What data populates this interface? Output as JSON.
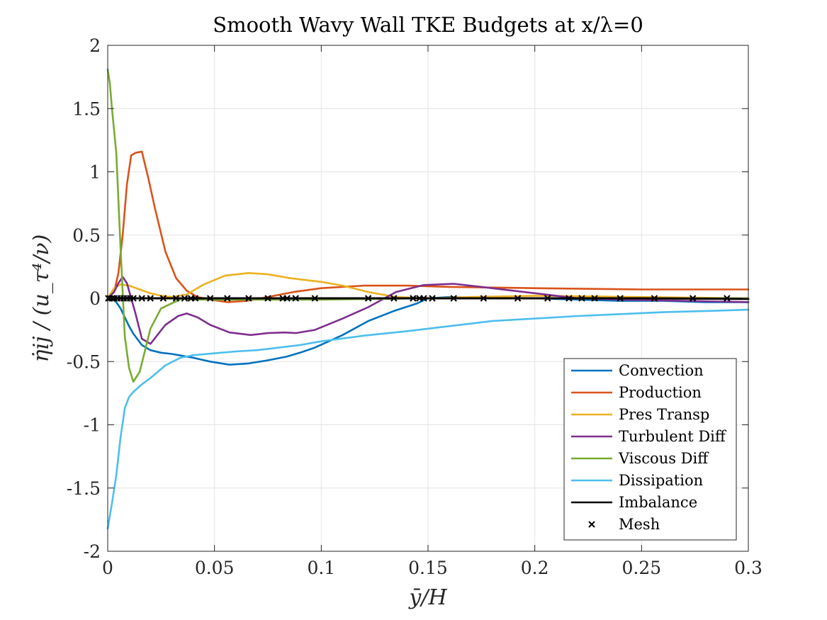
{
  "chart_data": {
    "type": "line",
    "title": "Smooth Wavy Wall TKE Budgets at x/λ=0",
    "xlabel": "ȳ/H",
    "ylabel": "η̇ij / (u_τ⁴/ν)",
    "xlim": [
      0,
      0.3
    ],
    "ylim": [
      -2,
      2
    ],
    "xticks": [
      0,
      0.05,
      0.1,
      0.15,
      0.2,
      0.25,
      0.3
    ],
    "xtick_labels": [
      "0",
      "0.05",
      "0.1",
      "0.15",
      "0.2",
      "0.25",
      "0.3"
    ],
    "yticks": [
      -2,
      -1.5,
      -1,
      -0.5,
      0,
      0.5,
      1,
      1.5,
      2
    ],
    "ytick_labels": [
      "-2",
      "-1.5",
      "-1",
      "-0.5",
      "0",
      "0.5",
      "1",
      "1.5",
      "2"
    ],
    "grid": true,
    "legend_position": "bottom-right",
    "series": [
      {
        "name": "Convection",
        "color": "#0072BD",
        "x": [
          0,
          0.002,
          0.004,
          0.006,
          0.008,
          0.01,
          0.012,
          0.016,
          0.02,
          0.025,
          0.03,
          0.035,
          0.04,
          0.048,
          0.057,
          0.066,
          0.075,
          0.084,
          0.09,
          0.097,
          0.11,
          0.122,
          0.134,
          0.145,
          0.15,
          0.16,
          0.18,
          0.2,
          0.22,
          0.24,
          0.26,
          0.28,
          0.3
        ],
        "y": [
          0,
          0,
          -0.03,
          -0.08,
          -0.15,
          -0.22,
          -0.28,
          -0.37,
          -0.41,
          -0.43,
          -0.44,
          -0.455,
          -0.47,
          -0.5,
          -0.525,
          -0.515,
          -0.49,
          -0.46,
          -0.43,
          -0.39,
          -0.29,
          -0.18,
          -0.1,
          -0.04,
          0,
          0.01,
          0,
          0,
          -0.01,
          -0.02,
          -0.02,
          -0.03,
          -0.03
        ]
      },
      {
        "name": "Production",
        "color": "#D95319",
        "x": [
          0,
          0.003,
          0.005,
          0.007,
          0.009,
          0.011,
          0.013,
          0.016,
          0.019,
          0.022,
          0.027,
          0.032,
          0.037,
          0.042,
          0.048,
          0.056,
          0.065,
          0.075,
          0.087,
          0.1,
          0.12,
          0.14,
          0.16,
          0.2,
          0.25,
          0.3
        ],
        "y": [
          0,
          0.05,
          0.2,
          0.5,
          0.9,
          1.13,
          1.15,
          1.16,
          0.95,
          0.72,
          0.37,
          0.16,
          0.06,
          0.01,
          -0.01,
          -0.03,
          -0.02,
          0.01,
          0.05,
          0.08,
          0.1,
          0.1,
          0.09,
          0.08,
          0.07,
          0.07
        ]
      },
      {
        "name": "Pres Transp",
        "color": "#EDB120",
        "x": [
          0,
          0.003,
          0.006,
          0.01,
          0.015,
          0.02,
          0.025,
          0.03,
          0.037,
          0.045,
          0.055,
          0.066,
          0.075,
          0.085,
          0.1,
          0.11,
          0.122,
          0.135,
          0.15,
          0.17,
          0.2,
          0.25,
          0.3
        ],
        "y": [
          0,
          0.08,
          0.11,
          0.1,
          0.07,
          0.04,
          0.02,
          0.01,
          0.03,
          0.11,
          0.18,
          0.2,
          0.19,
          0.16,
          0.13,
          0.1,
          0.05,
          0.01,
          0,
          0.01,
          0.02,
          0.01,
          0
        ]
      },
      {
        "name": "Turbulent Diff",
        "color": "#7E2F8E",
        "x": [
          0,
          0.003,
          0.005,
          0.007,
          0.009,
          0.011,
          0.013,
          0.016,
          0.02,
          0.027,
          0.033,
          0.037,
          0.042,
          0.048,
          0.057,
          0.067,
          0.075,
          0.083,
          0.088,
          0.097,
          0.11,
          0.122,
          0.135,
          0.148,
          0.162,
          0.175,
          0.19,
          0.21,
          0.22,
          0.24,
          0.27,
          0.3
        ],
        "y": [
          0,
          0.05,
          0.12,
          0.17,
          0.12,
          0,
          -0.12,
          -0.32,
          -0.36,
          -0.21,
          -0.14,
          -0.12,
          -0.15,
          -0.21,
          -0.27,
          -0.29,
          -0.275,
          -0.27,
          -0.275,
          -0.25,
          -0.16,
          -0.07,
          0.05,
          0.105,
          0.115,
          0.09,
          0.06,
          0.02,
          0,
          -0.01,
          -0.02,
          -0.03
        ]
      },
      {
        "name": "Viscous Diff",
        "color": "#77AC30",
        "x": [
          0,
          0.001,
          0.002,
          0.004,
          0.006,
          0.008,
          0.01,
          0.012,
          0.015,
          0.02,
          0.025,
          0.03,
          0.035,
          0.04,
          0.05,
          0.06,
          0.08,
          0.1,
          0.15,
          0.2,
          0.25,
          0.3
        ],
        "y": [
          1.81,
          1.7,
          1.5,
          1.15,
          0.4,
          -0.3,
          -0.55,
          -0.66,
          -0.58,
          -0.24,
          -0.08,
          -0.04,
          0,
          -0.01,
          -0.01,
          -0.01,
          -0.01,
          -0.01,
          0,
          0,
          0,
          0
        ]
      },
      {
        "name": "Dissipation",
        "color": "#4DBEEE",
        "x": [
          0,
          0.002,
          0.004,
          0.006,
          0.008,
          0.01,
          0.012,
          0.016,
          0.02,
          0.027,
          0.034,
          0.04,
          0.05,
          0.06,
          0.07,
          0.08,
          0.09,
          0.1,
          0.12,
          0.14,
          0.16,
          0.18,
          0.2,
          0.22,
          0.24,
          0.26,
          0.28,
          0.3
        ],
        "y": [
          -1.82,
          -1.62,
          -1.4,
          -1.1,
          -0.87,
          -0.78,
          -0.74,
          -0.68,
          -0.63,
          -0.53,
          -0.47,
          -0.45,
          -0.435,
          -0.42,
          -0.41,
          -0.39,
          -0.37,
          -0.34,
          -0.295,
          -0.26,
          -0.22,
          -0.18,
          -0.16,
          -0.14,
          -0.125,
          -0.11,
          -0.1,
          -0.09
        ]
      },
      {
        "name": "Imbalance",
        "color": "#000000",
        "x": [
          0,
          0.05,
          0.1,
          0.15,
          0.2,
          0.22,
          0.25,
          0.3
        ],
        "y": [
          0,
          0,
          0,
          0,
          0,
          0,
          0,
          -0.005
        ]
      },
      {
        "name": "Mesh",
        "color": "#000000",
        "marker": "x",
        "x": [
          0.0003,
          0.001,
          0.002,
          0.003,
          0.0045,
          0.006,
          0.0075,
          0.009,
          0.0105,
          0.012,
          0.016,
          0.02,
          0.026,
          0.032,
          0.036,
          0.039,
          0.041,
          0.048,
          0.056,
          0.066,
          0.075,
          0.082,
          0.084,
          0.088,
          0.097,
          0.122,
          0.134,
          0.143,
          0.146,
          0.148,
          0.152,
          0.162,
          0.176,
          0.192,
          0.206,
          0.216,
          0.222,
          0.228,
          0.24,
          0.256,
          0.274,
          0.29
        ],
        "y": [
          0,
          0,
          0,
          0,
          0,
          0,
          0,
          0,
          0,
          0,
          0,
          0,
          0,
          0,
          0,
          0,
          0,
          0,
          0,
          0,
          0,
          0,
          0,
          0,
          0,
          0,
          0,
          0,
          0,
          0,
          0,
          0,
          0,
          0,
          0,
          0,
          0,
          0,
          0,
          0,
          0,
          0
        ]
      }
    ]
  }
}
